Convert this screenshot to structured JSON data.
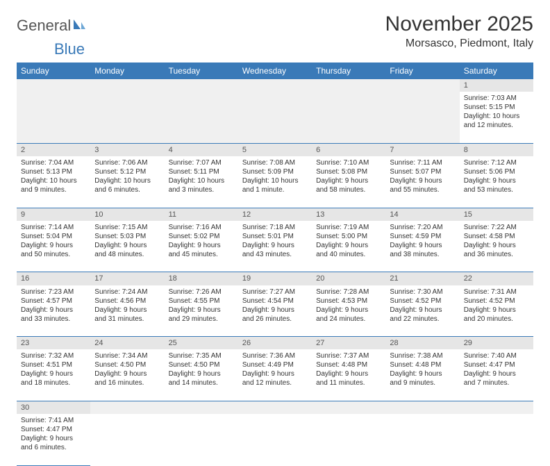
{
  "brand": {
    "general": "General",
    "blue": "Blue"
  },
  "header": {
    "monthTitle": "November 2025",
    "location": "Morsasco, Piedmont, Italy"
  },
  "styling": {
    "headerBg": "#3a7ab8",
    "headerText": "#ffffff",
    "dayNumBg": "#e6e6e6",
    "blankBg": "#f0f0f0",
    "bodyText": "#333333",
    "borderColor": "#3a7ab8",
    "pageBg": "#ffffff",
    "fontFamily": "Arial",
    "thFontSize": 12,
    "cellFontSize": 10,
    "titleFontSize": 30,
    "locationFontSize": 16
  },
  "columns": [
    "Sunday",
    "Monday",
    "Tuesday",
    "Wednesday",
    "Thursday",
    "Friday",
    "Saturday"
  ],
  "weeks": [
    {
      "nums": [
        "",
        "",
        "",
        "",
        "",
        "",
        "1"
      ],
      "cells": [
        null,
        null,
        null,
        null,
        null,
        null,
        {
          "sr": "Sunrise: 7:03 AM",
          "ss": "Sunset: 5:15 PM",
          "d1": "Daylight: 10 hours",
          "d2": "and 12 minutes."
        }
      ]
    },
    {
      "nums": [
        "2",
        "3",
        "4",
        "5",
        "6",
        "7",
        "8"
      ],
      "cells": [
        {
          "sr": "Sunrise: 7:04 AM",
          "ss": "Sunset: 5:13 PM",
          "d1": "Daylight: 10 hours",
          "d2": "and 9 minutes."
        },
        {
          "sr": "Sunrise: 7:06 AM",
          "ss": "Sunset: 5:12 PM",
          "d1": "Daylight: 10 hours",
          "d2": "and 6 minutes."
        },
        {
          "sr": "Sunrise: 7:07 AM",
          "ss": "Sunset: 5:11 PM",
          "d1": "Daylight: 10 hours",
          "d2": "and 3 minutes."
        },
        {
          "sr": "Sunrise: 7:08 AM",
          "ss": "Sunset: 5:09 PM",
          "d1": "Daylight: 10 hours",
          "d2": "and 1 minute."
        },
        {
          "sr": "Sunrise: 7:10 AM",
          "ss": "Sunset: 5:08 PM",
          "d1": "Daylight: 9 hours",
          "d2": "and 58 minutes."
        },
        {
          "sr": "Sunrise: 7:11 AM",
          "ss": "Sunset: 5:07 PM",
          "d1": "Daylight: 9 hours",
          "d2": "and 55 minutes."
        },
        {
          "sr": "Sunrise: 7:12 AM",
          "ss": "Sunset: 5:06 PM",
          "d1": "Daylight: 9 hours",
          "d2": "and 53 minutes."
        }
      ]
    },
    {
      "nums": [
        "9",
        "10",
        "11",
        "12",
        "13",
        "14",
        "15"
      ],
      "cells": [
        {
          "sr": "Sunrise: 7:14 AM",
          "ss": "Sunset: 5:04 PM",
          "d1": "Daylight: 9 hours",
          "d2": "and 50 minutes."
        },
        {
          "sr": "Sunrise: 7:15 AM",
          "ss": "Sunset: 5:03 PM",
          "d1": "Daylight: 9 hours",
          "d2": "and 48 minutes."
        },
        {
          "sr": "Sunrise: 7:16 AM",
          "ss": "Sunset: 5:02 PM",
          "d1": "Daylight: 9 hours",
          "d2": "and 45 minutes."
        },
        {
          "sr": "Sunrise: 7:18 AM",
          "ss": "Sunset: 5:01 PM",
          "d1": "Daylight: 9 hours",
          "d2": "and 43 minutes."
        },
        {
          "sr": "Sunrise: 7:19 AM",
          "ss": "Sunset: 5:00 PM",
          "d1": "Daylight: 9 hours",
          "d2": "and 40 minutes."
        },
        {
          "sr": "Sunrise: 7:20 AM",
          "ss": "Sunset: 4:59 PM",
          "d1": "Daylight: 9 hours",
          "d2": "and 38 minutes."
        },
        {
          "sr": "Sunrise: 7:22 AM",
          "ss": "Sunset: 4:58 PM",
          "d1": "Daylight: 9 hours",
          "d2": "and 36 minutes."
        }
      ]
    },
    {
      "nums": [
        "16",
        "17",
        "18",
        "19",
        "20",
        "21",
        "22"
      ],
      "cells": [
        {
          "sr": "Sunrise: 7:23 AM",
          "ss": "Sunset: 4:57 PM",
          "d1": "Daylight: 9 hours",
          "d2": "and 33 minutes."
        },
        {
          "sr": "Sunrise: 7:24 AM",
          "ss": "Sunset: 4:56 PM",
          "d1": "Daylight: 9 hours",
          "d2": "and 31 minutes."
        },
        {
          "sr": "Sunrise: 7:26 AM",
          "ss": "Sunset: 4:55 PM",
          "d1": "Daylight: 9 hours",
          "d2": "and 29 minutes."
        },
        {
          "sr": "Sunrise: 7:27 AM",
          "ss": "Sunset: 4:54 PM",
          "d1": "Daylight: 9 hours",
          "d2": "and 26 minutes."
        },
        {
          "sr": "Sunrise: 7:28 AM",
          "ss": "Sunset: 4:53 PM",
          "d1": "Daylight: 9 hours",
          "d2": "and 24 minutes."
        },
        {
          "sr": "Sunrise: 7:30 AM",
          "ss": "Sunset: 4:52 PM",
          "d1": "Daylight: 9 hours",
          "d2": "and 22 minutes."
        },
        {
          "sr": "Sunrise: 7:31 AM",
          "ss": "Sunset: 4:52 PM",
          "d1": "Daylight: 9 hours",
          "d2": "and 20 minutes."
        }
      ]
    },
    {
      "nums": [
        "23",
        "24",
        "25",
        "26",
        "27",
        "28",
        "29"
      ],
      "cells": [
        {
          "sr": "Sunrise: 7:32 AM",
          "ss": "Sunset: 4:51 PM",
          "d1": "Daylight: 9 hours",
          "d2": "and 18 minutes."
        },
        {
          "sr": "Sunrise: 7:34 AM",
          "ss": "Sunset: 4:50 PM",
          "d1": "Daylight: 9 hours",
          "d2": "and 16 minutes."
        },
        {
          "sr": "Sunrise: 7:35 AM",
          "ss": "Sunset: 4:50 PM",
          "d1": "Daylight: 9 hours",
          "d2": "and 14 minutes."
        },
        {
          "sr": "Sunrise: 7:36 AM",
          "ss": "Sunset: 4:49 PM",
          "d1": "Daylight: 9 hours",
          "d2": "and 12 minutes."
        },
        {
          "sr": "Sunrise: 7:37 AM",
          "ss": "Sunset: 4:48 PM",
          "d1": "Daylight: 9 hours",
          "d2": "and 11 minutes."
        },
        {
          "sr": "Sunrise: 7:38 AM",
          "ss": "Sunset: 4:48 PM",
          "d1": "Daylight: 9 hours",
          "d2": "and 9 minutes."
        },
        {
          "sr": "Sunrise: 7:40 AM",
          "ss": "Sunset: 4:47 PM",
          "d1": "Daylight: 9 hours",
          "d2": "and 7 minutes."
        }
      ]
    },
    {
      "nums": [
        "30",
        "",
        "",
        "",
        "",
        "",
        ""
      ],
      "cells": [
        {
          "sr": "Sunrise: 7:41 AM",
          "ss": "Sunset: 4:47 PM",
          "d1": "Daylight: 9 hours",
          "d2": "and 6 minutes."
        },
        null,
        null,
        null,
        null,
        null,
        null
      ]
    }
  ]
}
